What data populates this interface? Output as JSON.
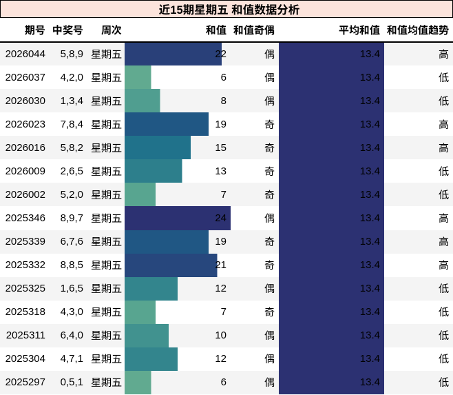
{
  "title": "近15期星期五 和值数据分析",
  "table": {
    "columns": [
      {
        "key": "issue",
        "label": "期号"
      },
      {
        "key": "numbers",
        "label": "中奖号"
      },
      {
        "key": "weekday",
        "label": "周次"
      },
      {
        "key": "sum",
        "label": "和值"
      },
      {
        "key": "parity",
        "label": "和值奇偶"
      },
      {
        "key": "avg",
        "label": "平均和值"
      },
      {
        "key": "trend",
        "label": "和值均值趋势"
      }
    ],
    "sum_bar_scale_max": 24,
    "avg_bar_scale_max": 13.4,
    "rows": [
      {
        "issue": "2026044",
        "numbers": "5,8,9",
        "weekday": "星期五",
        "sum": 22,
        "parity": "偶",
        "avg": "13.4",
        "trend": "高",
        "sum_bar_color": "#294079"
      },
      {
        "issue": "2026037",
        "numbers": "4,2,0",
        "weekday": "星期五",
        "sum": 6,
        "parity": "偶",
        "avg": "13.4",
        "trend": "低",
        "sum_bar_color": "#61aa90"
      },
      {
        "issue": "2026030",
        "numbers": "1,3,4",
        "weekday": "星期五",
        "sum": 8,
        "parity": "偶",
        "avg": "13.4",
        "trend": "低",
        "sum_bar_color": "#509e90"
      },
      {
        "issue": "2026023",
        "numbers": "7,8,4",
        "weekday": "星期五",
        "sum": 19,
        "parity": "奇",
        "avg": "13.4",
        "trend": "高",
        "sum_bar_color": "#205784"
      },
      {
        "issue": "2026016",
        "numbers": "5,8,2",
        "weekday": "星期五",
        "sum": 15,
        "parity": "奇",
        "avg": "13.4",
        "trend": "高",
        "sum_bar_color": "#20728b"
      },
      {
        "issue": "2026009",
        "numbers": "2,6,5",
        "weekday": "星期五",
        "sum": 13,
        "parity": "奇",
        "avg": "13.4",
        "trend": "低",
        "sum_bar_color": "#2d7f8c"
      },
      {
        "issue": "2026002",
        "numbers": "5,2,0",
        "weekday": "星期五",
        "sum": 7,
        "parity": "奇",
        "avg": "13.4",
        "trend": "低",
        "sum_bar_color": "#58a590"
      },
      {
        "issue": "2025346",
        "numbers": "8,9,7",
        "weekday": "星期五",
        "sum": 24,
        "parity": "偶",
        "avg": "13.4",
        "trend": "高",
        "sum_bar_color": "#2c3172"
      },
      {
        "issue": "2025339",
        "numbers": "6,7,6",
        "weekday": "星期五",
        "sum": 19,
        "parity": "奇",
        "avg": "13.4",
        "trend": "高",
        "sum_bar_color": "#205784"
      },
      {
        "issue": "2025332",
        "numbers": "8,8,5",
        "weekday": "星期五",
        "sum": 21,
        "parity": "奇",
        "avg": "13.4",
        "trend": "高",
        "sum_bar_color": "#27477d"
      },
      {
        "issue": "2025325",
        "numbers": "1,6,5",
        "weekday": "星期五",
        "sum": 12,
        "parity": "偶",
        "avg": "13.4",
        "trend": "低",
        "sum_bar_color": "#33858d"
      },
      {
        "issue": "2025318",
        "numbers": "4,3,0",
        "weekday": "星期五",
        "sum": 7,
        "parity": "奇",
        "avg": "13.4",
        "trend": "低",
        "sum_bar_color": "#58a590"
      },
      {
        "issue": "2025311",
        "numbers": "6,4,0",
        "weekday": "星期五",
        "sum": 10,
        "parity": "偶",
        "avg": "13.4",
        "trend": "低",
        "sum_bar_color": "#41928f"
      },
      {
        "issue": "2025304",
        "numbers": "4,7,1",
        "weekday": "星期五",
        "sum": 12,
        "parity": "偶",
        "avg": "13.4",
        "trend": "低",
        "sum_bar_color": "#33858d"
      },
      {
        "issue": "2025297",
        "numbers": "0,5,1",
        "weekday": "星期五",
        "sum": 6,
        "parity": "偶",
        "avg": "13.4",
        "trend": "低",
        "sum_bar_color": "#61aa90"
      }
    ]
  },
  "colors": {
    "title_bg": "#fce4dc",
    "title_border": "#000000",
    "row_alt_bg": "#f4f4f4",
    "row_bg": "#ffffff",
    "text": "#000000",
    "avg_bar_color": "#2c3172",
    "header_border": "#000000"
  },
  "chart_data": {
    "type": "table",
    "title": "近15期星期五 和值数据分析",
    "columns": [
      "期号",
      "中奖号",
      "周次",
      "和值",
      "和值奇偶",
      "平均和值",
      "和值均值趋势"
    ],
    "rows": [
      [
        "2026044",
        "5,8,9",
        "星期五",
        22,
        "偶",
        13.4,
        "高"
      ],
      [
        "2026037",
        "4,2,0",
        "星期五",
        6,
        "偶",
        13.4,
        "低"
      ],
      [
        "2026030",
        "1,3,4",
        "星期五",
        8,
        "偶",
        13.4,
        "低"
      ],
      [
        "2026023",
        "7,8,4",
        "星期五",
        19,
        "奇",
        13.4,
        "高"
      ],
      [
        "2026016",
        "5,8,2",
        "星期五",
        15,
        "奇",
        13.4,
        "高"
      ],
      [
        "2026009",
        "2,6,5",
        "星期五",
        13,
        "奇",
        13.4,
        "低"
      ],
      [
        "2026002",
        "5,2,0",
        "星期五",
        7,
        "奇",
        13.4,
        "低"
      ],
      [
        "2025346",
        "8,9,7",
        "星期五",
        24,
        "偶",
        13.4,
        "高"
      ],
      [
        "2025339",
        "6,7,6",
        "星期五",
        19,
        "奇",
        13.4,
        "高"
      ],
      [
        "2025332",
        "8,8,5",
        "星期五",
        21,
        "奇",
        13.4,
        "高"
      ],
      [
        "2025325",
        "1,6,5",
        "星期五",
        12,
        "偶",
        13.4,
        "低"
      ],
      [
        "2025318",
        "4,3,0",
        "星期五",
        7,
        "奇",
        13.4,
        "低"
      ],
      [
        "2025311",
        "6,4,0",
        "星期五",
        10,
        "偶",
        13.4,
        "低"
      ],
      [
        "2025304",
        "4,7,1",
        "星期五",
        12,
        "偶",
        13.4,
        "低"
      ],
      [
        "2025297",
        "0,5,1",
        "星期五",
        6,
        "偶",
        13.4,
        "低"
      ]
    ],
    "embedded_bars": {
      "和值": {
        "kind": "data-bar",
        "min": 0,
        "max": 24,
        "color_scale": "green-low to navy-high"
      },
      "平均和值": {
        "kind": "data-bar",
        "min": 0,
        "max": 13.4,
        "color": "#2c3172"
      }
    }
  }
}
